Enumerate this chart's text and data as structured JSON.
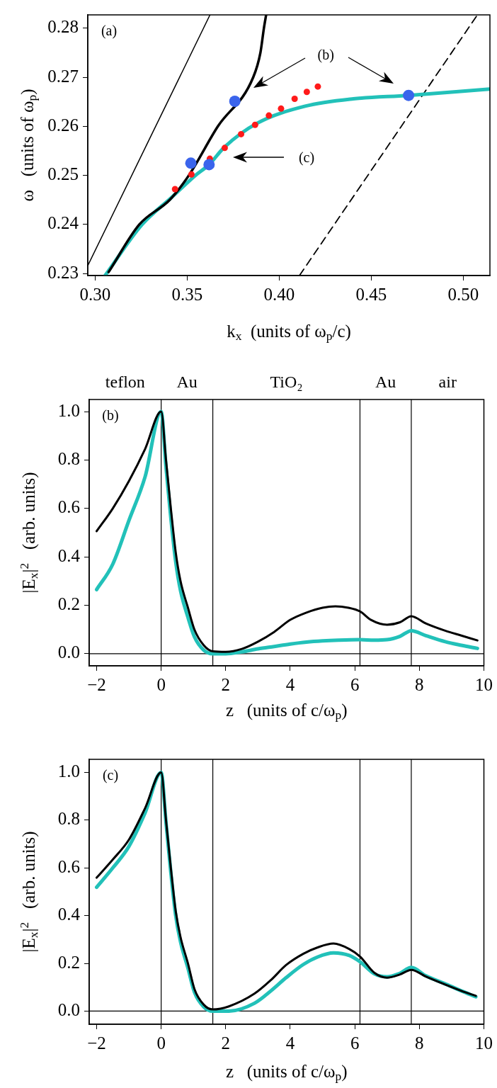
{
  "chart_data": [
    {
      "type": "line",
      "xlabel": "k$_{x}$  (units of ω$_{p}$/c)",
      "ylabel": "ω   (units of ω$_{p}$)",
      "xlim": [
        0.296,
        0.5145
      ],
      "ylim": [
        0.2296,
        0.2827
      ],
      "xticks": [
        {
          "value": 0.3,
          "label": "0.30"
        },
        {
          "value": 0.35,
          "label": "0.35"
        },
        {
          "value": 0.4,
          "label": "0.40"
        },
        {
          "value": 0.45,
          "label": "0.45"
        },
        {
          "value": 0.5,
          "label": "0.50"
        }
      ],
      "yticks": [
        0.23,
        0.24,
        0.25,
        0.26,
        0.27,
        0.28
      ],
      "grid": false,
      "annotations": [
        "(a)",
        "(b)",
        "(c)"
      ],
      "series": [
        {
          "type": "line",
          "color": "#000000",
          "x": [
            0.2961,
            0.3624
          ],
          "values": [
            0.2317,
            0.2827
          ]
        },
        {
          "type": "line",
          "color": "#000000",
          "line_style": "dashed",
          "x": [
            0.411,
            0.5077
          ],
          "values": [
            0.2296,
            0.2827
          ]
        },
        {
          "type": "line",
          "color": "#22c1b9",
          "x": [
            0.3054,
            0.3255,
            0.3415,
            0.3545,
            0.3619,
            0.3701,
            0.3879,
            0.4141,
            0.4403,
            0.4703,
            0.5143
          ],
          "values": [
            0.2296,
            0.24,
            0.2455,
            0.25,
            0.2522,
            0.2557,
            0.2606,
            0.2641,
            0.2656,
            0.2663,
            0.2676
          ]
        },
        {
          "type": "line",
          "color": "#000000",
          "x": [
            0.3073,
            0.324,
            0.3405,
            0.3509,
            0.3667,
            0.3859,
            0.3898,
            0.3917,
            0.3929
          ],
          "values": [
            0.2303,
            0.24,
            0.245,
            0.25,
            0.26,
            0.27,
            0.275,
            0.28,
            0.2827
          ]
        },
        {
          "type": "scatter",
          "marker": "circle",
          "color": "#ff1a1a",
          "x": [
            0.3434,
            0.3523,
            0.3623,
            0.3704,
            0.3793,
            0.3869,
            0.3944,
            0.401,
            0.4084,
            0.415,
            0.421
          ],
          "values": [
            0.2472,
            0.2502,
            0.2534,
            0.2556,
            0.2584,
            0.2603,
            0.2622,
            0.2636,
            0.2656,
            0.267,
            0.2681
          ]
        },
        {
          "type": "scatter",
          "marker": "circle",
          "color": "#3a64ec",
          "x": [
            0.352,
            0.3619,
            0.3759,
            0.4703
          ],
          "values": [
            0.2525,
            0.2522,
            0.2651,
            0.2663
          ]
        }
      ]
    },
    {
      "type": "line",
      "xlabel": "z   (units of c/ω$_{p}$)",
      "ylabel": "|E$_{x}$|$^{2}$   (arb. units)",
      "xlim": [
        -2.23,
        10
      ],
      "ylim": [
        -0.05,
        1.05
      ],
      "xticks": [
        {
          "value": -2,
          "label": "−2"
        },
        0,
        2,
        4,
        6,
        8,
        10
      ],
      "yticks": [
        {
          "value": 0,
          "label": "0.0"
        },
        {
          "value": 0.2,
          "label": "0.2"
        },
        {
          "value": 0.4,
          "label": "0.4"
        },
        {
          "value": 0.6,
          "label": "0.6"
        },
        {
          "value": 0.8,
          "label": "0.8"
        },
        {
          "value": 1,
          "label": "1.0"
        }
      ],
      "grid": false,
      "annotations": [
        "(b)",
        "teflon",
        "Au",
        "TiO₂",
        "Au",
        "air"
      ],
      "ref_lines": [
        {
          "axis": "x",
          "value": 0
        },
        {
          "axis": "x",
          "value": 1.6
        },
        {
          "axis": "x",
          "value": 6.16
        },
        {
          "axis": "x",
          "value": 7.75
        },
        {
          "axis": "y",
          "value": 0
        }
      ],
      "series": [
        {
          "color": "#22c1b9",
          "x": [
            -2,
            -1.5,
            -1,
            -0.5,
            0,
            0.15,
            0.3,
            0.45,
            0.6,
            0.83,
            1.03,
            1.32,
            1.6,
            2,
            2.5,
            3,
            3.5,
            4,
            4.5,
            5,
            5.5,
            6.16,
            6.6,
            7,
            7.4,
            7.75,
            8.2,
            8.8,
            9.3,
            9.8
          ],
          "values": [
            0.265,
            0.37,
            0.55,
            0.73,
            1.0,
            0.77,
            0.56,
            0.38,
            0.26,
            0.15,
            0.07,
            0.015,
            0.0,
            0.0,
            0.008,
            0.02,
            0.03,
            0.04,
            0.048,
            0.053,
            0.056,
            0.058,
            0.056,
            0.058,
            0.072,
            0.095,
            0.075,
            0.05,
            0.035,
            0.022
          ]
        },
        {
          "color": "#000000",
          "x": [
            -2,
            -1.5,
            -1,
            -0.5,
            0,
            0.15,
            0.3,
            0.45,
            0.6,
            0.83,
            1.03,
            1.32,
            1.6,
            2,
            2.5,
            3,
            3.5,
            4,
            4.5,
            5,
            5.4,
            5.8,
            6.16,
            6.5,
            7,
            7.4,
            7.75,
            8.2,
            8.8,
            9.3,
            9.8
          ],
          "values": [
            0.506,
            0.6,
            0.713,
            0.845,
            1.0,
            0.8,
            0.6,
            0.42,
            0.3,
            0.19,
            0.1,
            0.035,
            0.01,
            0.008,
            0.02,
            0.05,
            0.09,
            0.14,
            0.17,
            0.19,
            0.196,
            0.19,
            0.175,
            0.14,
            0.12,
            0.13,
            0.155,
            0.125,
            0.095,
            0.075,
            0.055
          ]
        }
      ]
    },
    {
      "type": "line",
      "xlabel": "z   (units of c/ω$_{p}$)",
      "ylabel": "|E$_{x}$|$^{2}$   (arb. units)",
      "xlim": [
        -2.23,
        10
      ],
      "ylim": [
        -0.055,
        1.055
      ],
      "xticks": [
        {
          "value": -2,
          "label": "−2"
        },
        0,
        2,
        4,
        6,
        8,
        10
      ],
      "yticks": [
        {
          "value": 0,
          "label": "0.0"
        },
        {
          "value": 0.2,
          "label": "0.2"
        },
        {
          "value": 0.4,
          "label": "0.4"
        },
        {
          "value": 0.6,
          "label": "0.6"
        },
        {
          "value": 0.8,
          "label": "0.8"
        },
        {
          "value": 1,
          "label": "1.0"
        }
      ],
      "grid": false,
      "annotations": [
        "(c)"
      ],
      "ref_lines": [
        {
          "axis": "x",
          "value": 0
        },
        {
          "axis": "x",
          "value": 1.6
        },
        {
          "axis": "x",
          "value": 6.16
        },
        {
          "axis": "x",
          "value": 7.75
        },
        {
          "axis": "y",
          "value": 0
        }
      ],
      "series": [
        {
          "color": "#22c1b9",
          "x": [
            -2,
            -1.5,
            -1,
            -0.5,
            0,
            0.15,
            0.3,
            0.45,
            0.6,
            0.83,
            1.03,
            1.32,
            1.6,
            2.1,
            2.89,
            3.4,
            3.87,
            4.4,
            4.85,
            5.34,
            5.83,
            6.16,
            6.61,
            7,
            7.39,
            7.75,
            8.2,
            8.77,
            9.3,
            9.75
          ],
          "values": [
            0.519,
            0.6,
            0.69,
            0.83,
            1.0,
            0.79,
            0.58,
            0.4,
            0.29,
            0.18,
            0.08,
            0.018,
            0.0,
            0.0,
            0.033,
            0.085,
            0.14,
            0.195,
            0.227,
            0.244,
            0.233,
            0.207,
            0.156,
            0.144,
            0.158,
            0.183,
            0.148,
            0.116,
            0.085,
            0.06
          ]
        },
        {
          "color": "#000000",
          "x": [
            -2,
            -1.5,
            -1,
            -0.5,
            0,
            0.15,
            0.3,
            0.45,
            0.6,
            0.83,
            1.03,
            1.32,
            1.6,
            2.1,
            2.89,
            3.4,
            3.87,
            4.4,
            4.85,
            5.34,
            5.83,
            6.16,
            6.61,
            7,
            7.39,
            7.75,
            8.2,
            8.77,
            9.3,
            9.75
          ],
          "values": [
            0.559,
            0.635,
            0.718,
            0.85,
            1.0,
            0.8,
            0.6,
            0.42,
            0.31,
            0.2,
            0.093,
            0.027,
            0.007,
            0.02,
            0.073,
            0.13,
            0.193,
            0.24,
            0.267,
            0.283,
            0.26,
            0.229,
            0.16,
            0.14,
            0.153,
            0.173,
            0.145,
            0.113,
            0.085,
            0.064
          ]
        }
      ]
    }
  ]
}
